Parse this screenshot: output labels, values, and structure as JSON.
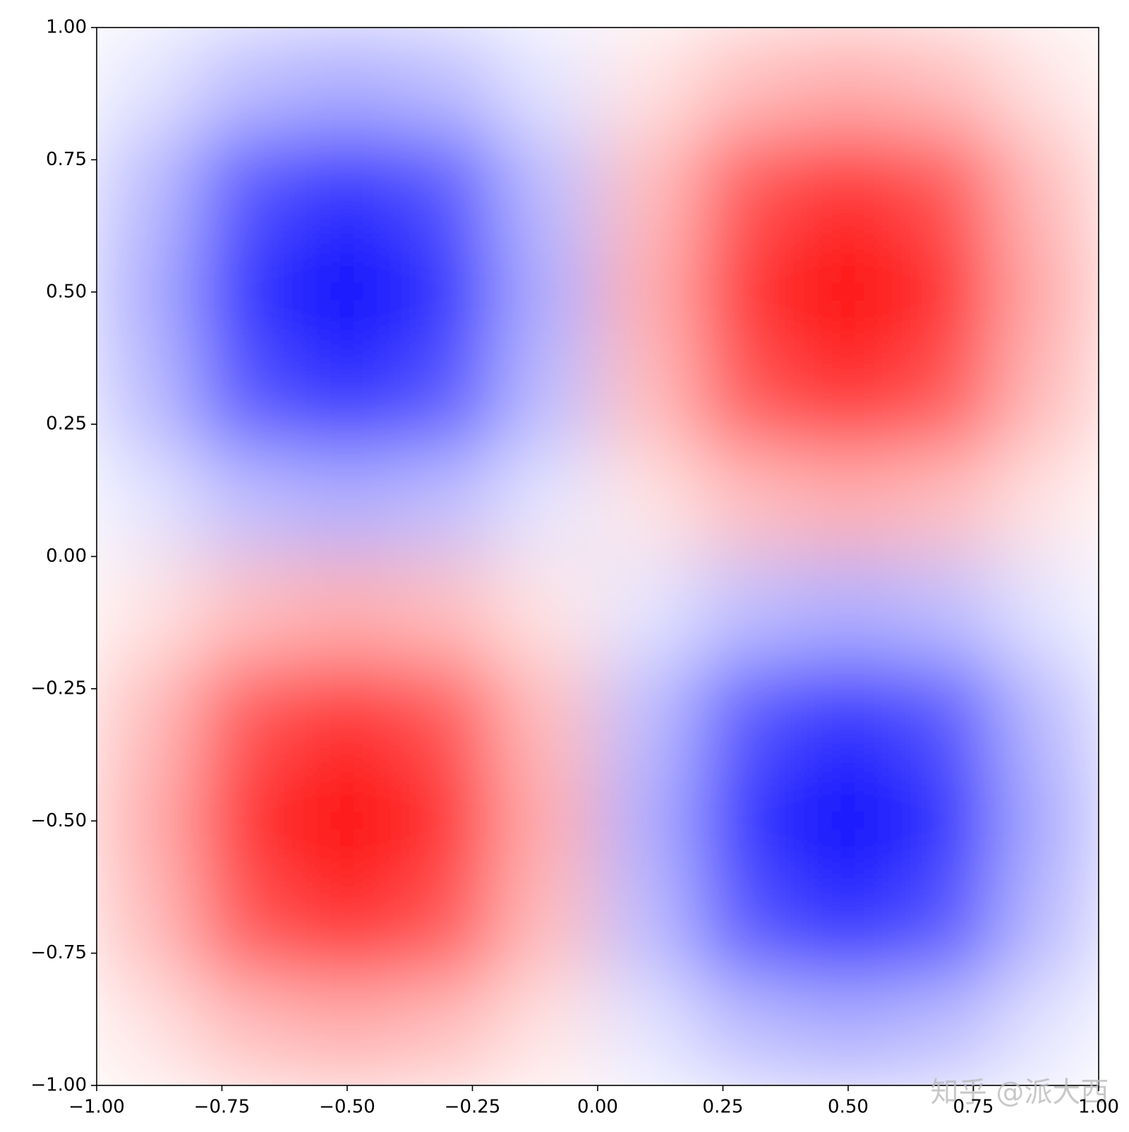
{
  "chart_data": {
    "type": "heatmap",
    "colormap": "bwr",
    "vlim": [
      -1,
      1
    ],
    "x": [
      -0.9,
      -0.7,
      -0.5,
      -0.3,
      -0.1,
      0.1,
      0.3,
      0.5,
      0.7,
      0.9
    ],
    "y": [
      0.9,
      0.7,
      0.5,
      0.3,
      0.1,
      -0.1,
      -0.3,
      -0.5,
      -0.7,
      -0.9
    ],
    "z": [
      [
        -0.1,
        -0.25,
        -0.31,
        -0.25,
        -0.1,
        0.1,
        0.25,
        0.31,
        0.25,
        0.1
      ],
      [
        -0.25,
        -0.66,
        -0.81,
        -0.66,
        -0.25,
        0.25,
        0.66,
        0.81,
        0.66,
        0.25
      ],
      [
        -0.31,
        -0.81,
        -1,
        -0.81,
        -0.31,
        0.31,
        0.81,
        1,
        0.81,
        0.31
      ],
      [
        -0.25,
        -0.66,
        -0.81,
        -0.66,
        -0.25,
        0.25,
        0.66,
        0.81,
        0.66,
        0.25
      ],
      [
        -0.1,
        -0.25,
        -0.31,
        -0.25,
        -0.1,
        0.1,
        0.25,
        0.31,
        0.25,
        0.1
      ],
      [
        0.1,
        0.25,
        0.31,
        0.25,
        0.1,
        -0.1,
        -0.25,
        -0.31,
        -0.25,
        -0.1
      ],
      [
        0.25,
        0.66,
        0.81,
        0.66,
        0.25,
        -0.25,
        -0.66,
        -0.81,
        -0.66,
        -0.25
      ],
      [
        0.31,
        0.81,
        1,
        0.81,
        0.31,
        -0.31,
        -0.81,
        -1,
        -0.81,
        -0.31
      ],
      [
        0.25,
        0.66,
        0.81,
        0.66,
        0.25,
        -0.25,
        -0.66,
        -0.81,
        -0.66,
        -0.25
      ],
      [
        0.1,
        0.25,
        0.31,
        0.25,
        0.1,
        -0.1,
        -0.25,
        -0.31,
        -0.25,
        -0.1
      ]
    ],
    "xlim": [
      -1,
      1
    ],
    "ylim": [
      -1,
      1
    ],
    "xticks": [
      {
        "value": -1,
        "label": "−1.00"
      },
      {
        "value": -0.75,
        "label": "−0.75"
      },
      {
        "value": -0.5,
        "label": "−0.50"
      },
      {
        "value": -0.25,
        "label": "−0.25"
      },
      {
        "value": 0,
        "label": "0.00"
      },
      {
        "value": 0.25,
        "label": "0.25"
      },
      {
        "value": 0.5,
        "label": "0.50"
      },
      {
        "value": 0.75,
        "label": "0.75"
      },
      {
        "value": 1,
        "label": "1.00"
      }
    ],
    "yticks": [
      {
        "value": -1,
        "label": "−1.00"
      },
      {
        "value": -0.75,
        "label": "−0.75"
      },
      {
        "value": -0.5,
        "label": "−0.50"
      },
      {
        "value": -0.25,
        "label": "−0.25"
      },
      {
        "value": 0,
        "label": "0.00"
      },
      {
        "value": 0.25,
        "label": "0.25"
      },
      {
        "value": 0.5,
        "label": "0.50"
      },
      {
        "value": 0.75,
        "label": "0.75"
      },
      {
        "value": 1,
        "label": "1.00"
      }
    ],
    "watermark": "知乎 @派大西"
  }
}
